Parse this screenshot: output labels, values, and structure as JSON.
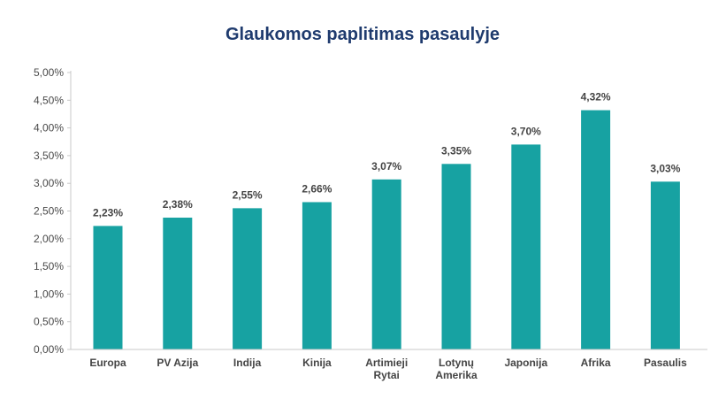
{
  "chart_data": {
    "type": "bar",
    "title": "Glaukomos paplitimas pasaulyje",
    "xlabel": "",
    "ylabel": "",
    "categories": [
      [
        "Europa"
      ],
      [
        "PV Azija"
      ],
      [
        "Indija"
      ],
      [
        "Kinija"
      ],
      [
        "Artimieji",
        "Rytai"
      ],
      [
        "Lotynų",
        "Amerika"
      ],
      [
        "Japonija"
      ],
      [
        "Afrika"
      ],
      [
        "Pasaulis"
      ]
    ],
    "values": [
      2.23,
      2.38,
      2.55,
      2.66,
      3.07,
      3.35,
      3.7,
      4.32,
      3.03
    ],
    "value_labels": [
      "2,23%",
      "2,38%",
      "2,55%",
      "2,66%",
      "3,07%",
      "3,35%",
      "3,70%",
      "4,32%",
      "3,03%"
    ],
    "ylim": [
      0,
      5
    ],
    "yticks": [
      0,
      0.5,
      1,
      1.5,
      2,
      2.5,
      3,
      3.5,
      4,
      4.5,
      5
    ],
    "ytick_labels": [
      "0,00%",
      "0,50%",
      "1,00%",
      "1,50%",
      "2,00%",
      "2,50%",
      "3,00%",
      "3,50%",
      "4,00%",
      "4,50%",
      "5,00%"
    ],
    "grid": false,
    "legend": "none",
    "bar_color": "#17a2a2",
    "axis_color": "#c8c8c8"
  }
}
